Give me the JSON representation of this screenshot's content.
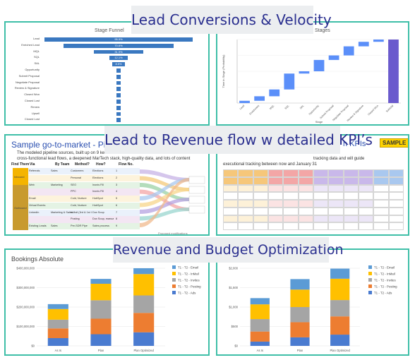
{
  "banners": {
    "top": "Lead Conversions & Velocity",
    "middle": "Lead to Revenue flow w detailed KPI’s",
    "bottom": "Revenue and Budget Optimization"
  },
  "funnel": {
    "title": "Stage Funnel",
    "rows": [
      {
        "label": "Lead",
        "pct": "95.5%",
        "value": 95.5
      },
      {
        "label": "Enriched Lead",
        "pct": "70.6%",
        "value": 70.6
      },
      {
        "label": "MQL",
        "pct": "31.9%",
        "value": 31.9
      },
      {
        "label": "SQL",
        "pct": "12.1%",
        "value": 12.1
      },
      {
        "label": "SAL",
        "pct": "8.5%",
        "value": 8.5
      },
      {
        "label": "Opportunity",
        "pct": "",
        "value": 1.5
      },
      {
        "label": "Submit Proposal",
        "pct": "",
        "value": 1.3
      },
      {
        "label": "Negotiate Proposal",
        "pct": "",
        "value": 1.1
      },
      {
        "label": "Review & Signature",
        "pct": "",
        "value": 1.0
      },
      {
        "label": "Closed Won",
        "pct": "",
        "value": 0.9
      },
      {
        "label": "Closed Lost",
        "pct": "",
        "value": 0.8
      },
      {
        "label": "Renew",
        "pct": "",
        "value": 0.7
      },
      {
        "label": "Upsell",
        "pct": "",
        "value": 0.6
      },
      {
        "label": "Closed Lost",
        "pct": "",
        "value": 0.5
      }
    ]
  },
  "waterfall": {
    "title": "Stages",
    "ylabel": "Time in Stage (Probability)",
    "xlabel": "Stage",
    "categories": [
      "Lead",
      "Enrichment",
      "MQL",
      "SQL",
      "SAL",
      "Opportunity",
      "Submit Proposal",
      "Negotiate Proposal",
      "Review & Signature",
      "Closed Won",
      "Subtotal"
    ]
  },
  "pipeline": {
    "title": "Sample go-to-market - Pipel",
    "desc_line1": "The modeled pipeline sources, built up on 9 ke",
    "desc_line2": "cross-functional lead flows, a deepened MarTech stack, high-quality data, and lots of content",
    "headers": [
      "Find Them",
      "Via",
      "By Team",
      "Method?",
      "How?",
      "Flow No."
    ],
    "rows": [
      {
        "via": "Referrals",
        "team": "Sales",
        "method": "Customers",
        "how": "Elections",
        "flow": "1"
      },
      {
        "via": "",
        "team": "",
        "method": "Personal",
        "how": "Elections",
        "flow": "2"
      },
      {
        "via": "Web",
        "team": "Marketing",
        "method": "SEO",
        "how": "Inonis Fill",
        "flow": "3"
      },
      {
        "via": "",
        "team": "",
        "method": "PPC",
        "how": "Inonis Fill",
        "flow": "4"
      },
      {
        "via": "Email",
        "team": "",
        "method": "Cold, Nurture",
        "how": "HubSpot",
        "flow": "5"
      },
      {
        "via": "Virtual Events",
        "team": "",
        "method": "Cold, Nurture",
        "how": "HubSpot",
        "flow": "6"
      },
      {
        "via": "LinkedIn",
        "team": "Marketing & Sales",
        "method": "InMail (3rd & 1st Contacts)",
        "how": "Dux Soup",
        "flow": "7"
      },
      {
        "via": "",
        "team": "",
        "method": "Posting",
        "how": "Dux Soup, manual",
        "flow": "8"
      },
      {
        "via": "Existing Leads",
        "team": "Sales",
        "method": "Pre-SDR Pipe",
        "how": "Sales process",
        "flow": "9"
      }
    ],
    "left_labels": [
      "Inbound",
      "Outbound"
    ],
    "footer": "Proposed modifications"
  },
  "kpi": {
    "title_fragment": "h KPIs",
    "sample_badge": "SAMPLE",
    "desc_line1": "tracking data and will guide",
    "desc_line2": "executional tracking between now and January 31"
  },
  "bookings_abs": {
    "title": "Bookings Absolute",
    "yticks": [
      "$0",
      "$100,000,000",
      "$200,000,000",
      "$300,000,000",
      "$400,000,000"
    ]
  },
  "bookings_right": {
    "yticks": [
      "$0",
      "$500",
      "$1,000",
      "$1,500",
      "$2,000"
    ]
  },
  "chart_data": [
    {
      "type": "bar",
      "title": "Stage Funnel",
      "categories": [
        "Lead",
        "Enriched Lead",
        "MQL",
        "SQL",
        "SAL",
        "Opportunity",
        "Submit Proposal",
        "Negotiate Proposal",
        "Review & Signature",
        "Closed Won",
        "Closed Lost",
        "Renew",
        "Upsell",
        "Closed Lost"
      ],
      "values": [
        95.5,
        70.6,
        31.9,
        12.1,
        8.5,
        1.5,
        1.3,
        1.1,
        1.0,
        0.9,
        0.8,
        0.7,
        0.6,
        0.5
      ]
    },
    {
      "type": "bar",
      "title": "Stages",
      "ylabel": "Time in Stage (Probability)",
      "xlabel": "Stage",
      "categories": [
        "Lead",
        "Enrichment",
        "MQL",
        "SQL",
        "SAL",
        "Opportunity",
        "Submit Proposal",
        "Negotiate Proposal",
        "Review & Signature",
        "Closed Won",
        "Subtotal"
      ],
      "series": [
        {
          "values": [
            [
              0,
              1
            ],
            [
              1,
              3
            ],
            [
              3,
              6
            ],
            [
              6,
              13
            ],
            [
              13,
              14
            ],
            [
              14,
              19
            ],
            [
              19,
              21
            ],
            [
              21,
              25
            ],
            [
              25,
              27
            ],
            [
              27,
              28
            ],
            [
              0,
              28
            ]
          ]
        }
      ],
      "colors": [
        "#5b8ff9",
        "#6a5acd"
      ]
    },
    {
      "type": "bar",
      "title": "Bookings Absolute",
      "categories": [
        "As Is",
        "Plan",
        "Plan Optimized"
      ],
      "ylim": [
        0,
        400000000
      ],
      "series": [
        {
          "name": "T1 - T2 - Ads",
          "values": [
            40000000,
            60000000,
            70000000
          ],
          "color": "#4a7bd0"
        },
        {
          "name": "T1 - T2 - Posting",
          "values": [
            50000000,
            80000000,
            100000000
          ],
          "color": "#ed7d31"
        },
        {
          "name": "T1 - T2 - Invites",
          "values": [
            45000000,
            95000000,
            90000000
          ],
          "color": "#a5a5a5"
        },
        {
          "name": "T1 - T2 - InMail",
          "values": [
            55000000,
            85000000,
            110000000
          ],
          "color": "#ffc000"
        },
        {
          "name": "T1 - T2 - Email",
          "values": [
            25000000,
            25000000,
            30000000
          ],
          "color": "#5b9bd5"
        }
      ]
    },
    {
      "type": "bar",
      "categories": [
        "As Is",
        "Plan",
        "Plan Optimized"
      ],
      "ylim": [
        0,
        2000
      ],
      "series": [
        {
          "name": "T1 - T2 - Ads",
          "values": [
            110,
            220,
            290
          ],
          "color": "#4a7bd0"
        },
        {
          "name": "T1 - T2 - Posting",
          "values": [
            260,
            390,
            470
          ],
          "color": "#ed7d31"
        },
        {
          "name": "T1 - T2 - Invites",
          "values": [
            320,
            390,
            420
          ],
          "color": "#a5a5a5"
        },
        {
          "name": "T1 - T2 - InMail",
          "values": [
            380,
            450,
            550
          ],
          "color": "#ffc000"
        },
        {
          "name": "T1 - T2 - Email",
          "values": [
            160,
            270,
            260
          ],
          "color": "#5b9bd5"
        }
      ]
    }
  ],
  "colors": {
    "frame": "#3fbfa8",
    "banner_text": "#2a2f8f",
    "banner_bg": "#eceef0",
    "funnel_bar": "#3a78c0"
  }
}
